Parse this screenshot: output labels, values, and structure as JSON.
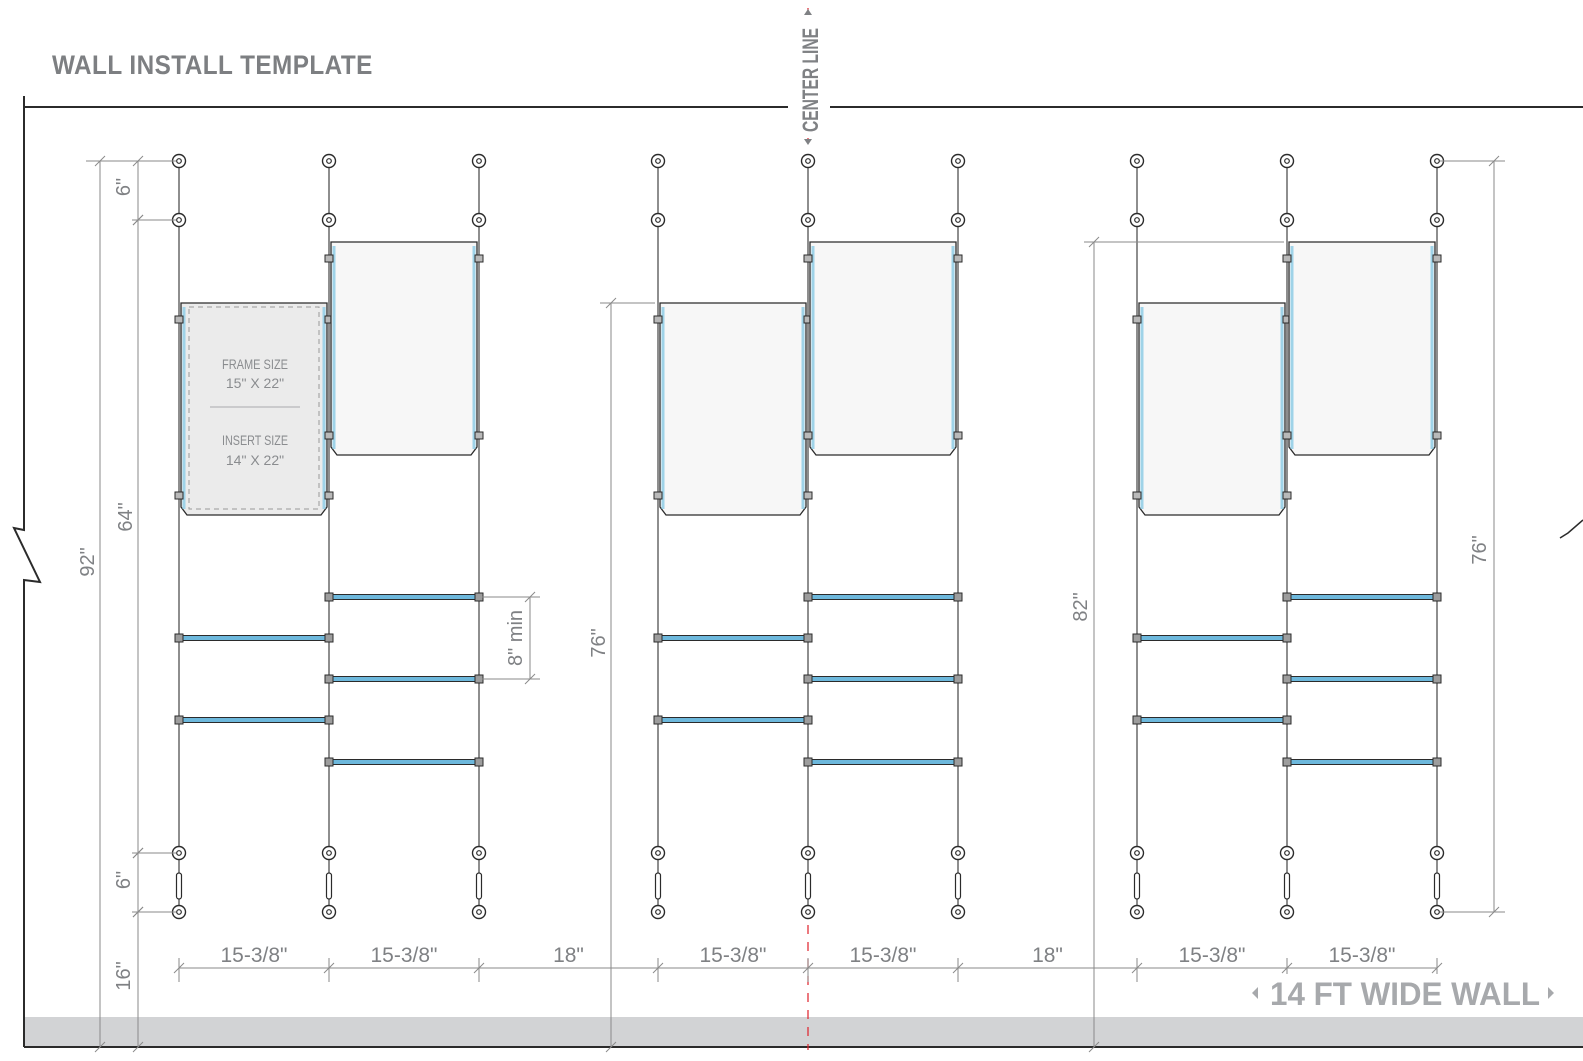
{
  "title": "WALL INSTALL TEMPLATE",
  "center_line_label": "CENTER LINE",
  "wall_label": "14 FT WIDE WALL",
  "frame_label": {
    "frame_size_title": "FRAME SIZE",
    "frame_size": "15\" X 22\"",
    "insert_size_title": "INSERT SIZE",
    "insert_size": "14\" X 22\""
  },
  "dimensions": {
    "top_spacing": "6\"",
    "bottom_spacing": "6\"",
    "floor_to_rail": "16\"",
    "total_height": "92\"",
    "cable_height": "64\"",
    "shelf_gap": "8\" min",
    "group2_height": "76\"",
    "group3_height": "82\"",
    "right_height": "76\""
  },
  "widths": [
    "15-3/8\"",
    "15-3/8\"",
    "18\"",
    "15-3/8\"",
    "15-3/8\"",
    "18\"",
    "15-3/8\"",
    "15-3/8\""
  ],
  "colors": {
    "line": "#2b2b2b",
    "dim_line": "#8a8a8a",
    "dim_text": "#7f8184",
    "shelf": "#6db8dc",
    "frame_fill": "#f7f7f7",
    "frame_edge": "#9fd3e8",
    "center_line": "#e0202a",
    "floor": "#d2d3d5",
    "title": "#7d7f82"
  }
}
